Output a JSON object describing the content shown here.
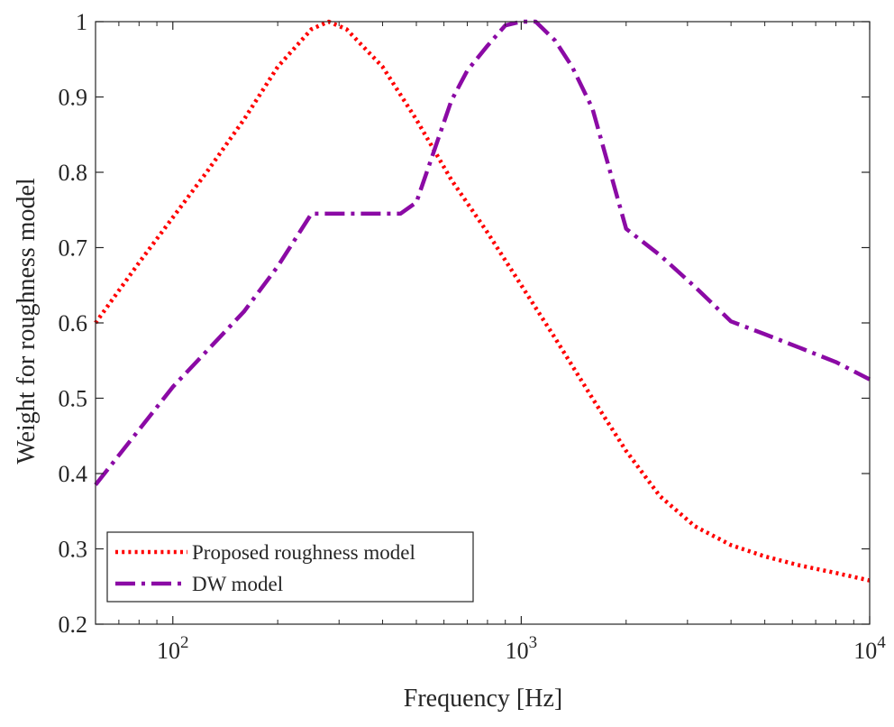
{
  "chart_data": {
    "type": "line",
    "title": "",
    "xlabel": "Frequency [Hz]",
    "ylabel": "Weight for roughness model",
    "xscale": "log",
    "xlim": [
      60,
      10000
    ],
    "ylim": [
      0.2,
      1.0
    ],
    "grid": false,
    "legend_position": "bottom-left",
    "x_ticks": [
      {
        "value": 100,
        "base": "10",
        "exp": "2"
      },
      {
        "value": 1000,
        "base": "10",
        "exp": "3"
      },
      {
        "value": 10000,
        "base": "10",
        "exp": "4"
      }
    ],
    "y_ticks": [
      "0.2",
      "0.3",
      "0.4",
      "0.5",
      "0.6",
      "0.7",
      "0.8",
      "0.9",
      "1"
    ],
    "series": [
      {
        "name": "Proposed roughness model",
        "color": "#ff0000",
        "line_style": "dotted",
        "x": [
          60,
          80,
          100,
          125,
          160,
          200,
          250,
          280,
          315,
          400,
          500,
          630,
          800,
          1000,
          1250,
          1600,
          2000,
          2500,
          3150,
          4000,
          5000,
          6300,
          8000,
          10000
        ],
        "y": [
          0.6,
          0.68,
          0.74,
          0.8,
          0.87,
          0.94,
          0.99,
          1.0,
          0.99,
          0.94,
          0.87,
          0.79,
          0.72,
          0.65,
          0.58,
          0.5,
          0.43,
          0.37,
          0.33,
          0.305,
          0.29,
          0.278,
          0.268,
          0.258
        ]
      },
      {
        "name": "DW model",
        "color": "#8b0aa5",
        "line_style": "dashdot",
        "x": [
          60,
          100,
          160,
          200,
          250,
          315,
          400,
          450,
          500,
          630,
          700,
          800,
          900,
          1000,
          1100,
          1250,
          1400,
          1600,
          2000,
          2500,
          3150,
          4000,
          5000,
          6300,
          8000,
          10000
        ],
        "y": [
          0.385,
          0.515,
          0.615,
          0.675,
          0.745,
          0.745,
          0.745,
          0.745,
          0.76,
          0.895,
          0.935,
          0.968,
          0.995,
          1.0,
          1.0,
          0.975,
          0.94,
          0.885,
          0.725,
          0.69,
          0.648,
          0.602,
          0.585,
          0.567,
          0.548,
          0.525
        ]
      }
    ]
  }
}
